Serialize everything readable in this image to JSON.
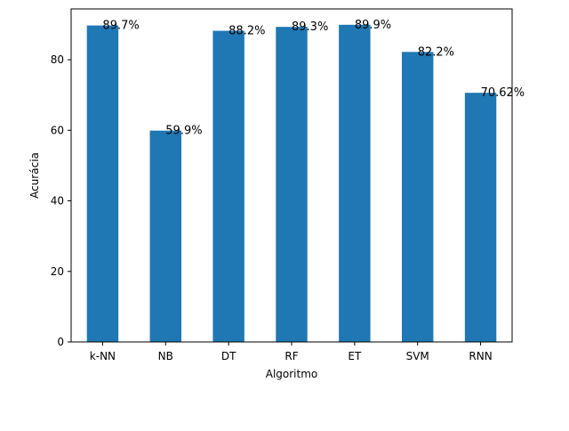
{
  "chart_data": {
    "type": "bar",
    "categories": [
      "k-NN",
      "NB",
      "DT",
      "RF",
      "ET",
      "SVM",
      "RNN"
    ],
    "values": [
      89.7,
      59.9,
      88.2,
      89.3,
      89.9,
      82.2,
      70.62
    ],
    "data_labels": [
      "89.7%",
      "59.9%",
      "88.2%",
      "89.3%",
      "89.9%",
      "82.2%",
      "70.62%"
    ],
    "title": "",
    "xlabel": "Algoritmo",
    "ylabel": "Acurácia",
    "ylim": [
      0,
      94.4
    ],
    "yticks": [
      0,
      20,
      40,
      60,
      80
    ],
    "grid": false,
    "bar_color": "#1f77b4"
  }
}
